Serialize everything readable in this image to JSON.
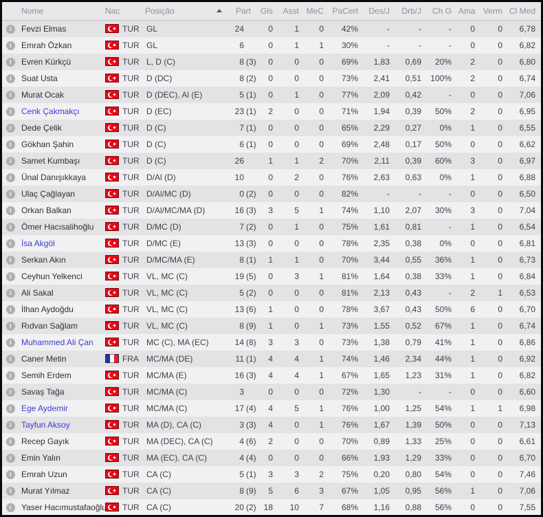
{
  "colors": {
    "window_border": "#0a0a0a",
    "header_bg": "#e8e8ea",
    "header_text": "#8f8f98",
    "row_odd": "#e3e3e5",
    "row_even": "#f1f1f3",
    "row_text": "#3f3f44",
    "link_blue": "#3b3bd1",
    "flag_tur_red": "#e30a17",
    "flag_fra_blue": "#20359c",
    "flag_fra_red": "#e32430"
  },
  "icons": {
    "info_glyph": "i",
    "sort_icon": "sort-asc-triangle"
  },
  "table": {
    "sort": {
      "column": "Posição",
      "direction": "asc"
    },
    "columns": [
      {
        "label": "",
        "align": "center"
      },
      {
        "label": "Nome",
        "align": "left"
      },
      {
        "label": "Nac",
        "align": "left"
      },
      {
        "label": "Posição",
        "align": "left"
      },
      {
        "label": "Part",
        "align": "right"
      },
      {
        "label": "Gls",
        "align": "right"
      },
      {
        "label": "Asst",
        "align": "right"
      },
      {
        "label": "MeC",
        "align": "right"
      },
      {
        "label": "PaCert",
        "align": "right"
      },
      {
        "label": "Des/J",
        "align": "right"
      },
      {
        "label": "Drb/J",
        "align": "right"
      },
      {
        "label": "Ch G",
        "align": "right"
      },
      {
        "label": "Ama",
        "align": "right"
      },
      {
        "label": "Verm",
        "align": "right"
      },
      {
        "label": "Cl Med",
        "align": "right"
      }
    ],
    "rows": [
      {
        "name": "Fevzi Elmas",
        "linked": false,
        "nat": "TUR",
        "pos": "GL",
        "part": "24",
        "gls": "0",
        "asst": "1",
        "mec": "0",
        "pacert": "42%",
        "desj": "-",
        "drbj": "-",
        "chg": "-",
        "ama": "0",
        "verm": "0",
        "clmed": "6,78"
      },
      {
        "name": "Emrah Özkan",
        "linked": false,
        "nat": "TUR",
        "pos": "GL",
        "part": "6",
        "gls": "0",
        "asst": "1",
        "mec": "1",
        "pacert": "30%",
        "desj": "-",
        "drbj": "-",
        "chg": "-",
        "ama": "0",
        "verm": "0",
        "clmed": "6,82"
      },
      {
        "name": "Evren Kürkçü",
        "linked": false,
        "nat": "TUR",
        "pos": "L, D (C)",
        "part": "8 (3)",
        "gls": "0",
        "asst": "0",
        "mec": "0",
        "pacert": "69%",
        "desj": "1,83",
        "drbj": "0,69",
        "chg": "20%",
        "ama": "2",
        "verm": "0",
        "clmed": "6,80"
      },
      {
        "name": "Suat Usta",
        "linked": false,
        "nat": "TUR",
        "pos": "D (DC)",
        "part": "8 (2)",
        "gls": "0",
        "asst": "0",
        "mec": "0",
        "pacert": "73%",
        "desj": "2,41",
        "drbj": "0,51",
        "chg": "100%",
        "ama": "2",
        "verm": "0",
        "clmed": "6,74"
      },
      {
        "name": "Murat Ocak",
        "linked": false,
        "nat": "TUR",
        "pos": "D (DEC), Al (E)",
        "part": "5 (1)",
        "gls": "0",
        "asst": "1",
        "mec": "0",
        "pacert": "77%",
        "desj": "2,09",
        "drbj": "0,42",
        "chg": "-",
        "ama": "0",
        "verm": "0",
        "clmed": "7,06"
      },
      {
        "name": "Cenk Çakmakçı",
        "linked": true,
        "nat": "TUR",
        "pos": "D (EC)",
        "part": "23 (1)",
        "gls": "2",
        "asst": "0",
        "mec": "0",
        "pacert": "71%",
        "desj": "1,94",
        "drbj": "0,39",
        "chg": "50%",
        "ama": "2",
        "verm": "0",
        "clmed": "6,95"
      },
      {
        "name": "Dede Çelik",
        "linked": false,
        "nat": "TUR",
        "pos": "D (C)",
        "part": "7 (1)",
        "gls": "0",
        "asst": "0",
        "mec": "0",
        "pacert": "65%",
        "desj": "2,29",
        "drbj": "0,27",
        "chg": "0%",
        "ama": "1",
        "verm": "0",
        "clmed": "6,55"
      },
      {
        "name": "Gökhan Şahin",
        "linked": false,
        "nat": "TUR",
        "pos": "D (C)",
        "part": "6 (1)",
        "gls": "0",
        "asst": "0",
        "mec": "0",
        "pacert": "69%",
        "desj": "2,48",
        "drbj": "0,17",
        "chg": "50%",
        "ama": "0",
        "verm": "0",
        "clmed": "6,62"
      },
      {
        "name": "Samet Kumbaşı",
        "linked": false,
        "nat": "TUR",
        "pos": "D (C)",
        "part": "26",
        "gls": "1",
        "asst": "1",
        "mec": "2",
        "pacert": "70%",
        "desj": "2,11",
        "drbj": "0,39",
        "chg": "60%",
        "ama": "3",
        "verm": "0",
        "clmed": "6,97"
      },
      {
        "name": "Ünal Danışıkkaya",
        "linked": false,
        "nat": "TUR",
        "pos": "D/Al (D)",
        "part": "10",
        "gls": "0",
        "asst": "2",
        "mec": "0",
        "pacert": "76%",
        "desj": "2,63",
        "drbj": "0,63",
        "chg": "0%",
        "ama": "1",
        "verm": "0",
        "clmed": "6,88"
      },
      {
        "name": "Ulaç Çağlayan",
        "linked": false,
        "nat": "TUR",
        "pos": "D/Al/MC (D)",
        "part": "0 (2)",
        "gls": "0",
        "asst": "0",
        "mec": "0",
        "pacert": "82%",
        "desj": "-",
        "drbj": "-",
        "chg": "-",
        "ama": "0",
        "verm": "0",
        "clmed": "6,50"
      },
      {
        "name": "Orkan Balkan",
        "linked": false,
        "nat": "TUR",
        "pos": "D/Al/MC/MA (D)",
        "part": "16 (3)",
        "gls": "3",
        "asst": "5",
        "mec": "1",
        "pacert": "74%",
        "desj": "1,10",
        "drbj": "2,07",
        "chg": "30%",
        "ama": "3",
        "verm": "0",
        "clmed": "7,04"
      },
      {
        "name": "Ömer Hacısalihoğlu",
        "linked": false,
        "nat": "TUR",
        "pos": "D/MC (D)",
        "part": "7 (2)",
        "gls": "0",
        "asst": "1",
        "mec": "0",
        "pacert": "75%",
        "desj": "1,61",
        "drbj": "0,81",
        "chg": "-",
        "ama": "1",
        "verm": "0",
        "clmed": "6,54"
      },
      {
        "name": "İsa Akgöl",
        "linked": true,
        "nat": "TUR",
        "pos": "D/MC (E)",
        "part": "13 (3)",
        "gls": "0",
        "asst": "0",
        "mec": "0",
        "pacert": "78%",
        "desj": "2,35",
        "drbj": "0,38",
        "chg": "0%",
        "ama": "0",
        "verm": "0",
        "clmed": "6,81"
      },
      {
        "name": "Serkan Akın",
        "linked": false,
        "nat": "TUR",
        "pos": "D/MC/MA (E)",
        "part": "8 (1)",
        "gls": "1",
        "asst": "1",
        "mec": "0",
        "pacert": "70%",
        "desj": "3,44",
        "drbj": "0,55",
        "chg": "36%",
        "ama": "1",
        "verm": "0",
        "clmed": "6,73"
      },
      {
        "name": "Ceyhun Yelkenci",
        "linked": false,
        "nat": "TUR",
        "pos": "VL, MC (C)",
        "part": "19 (5)",
        "gls": "0",
        "asst": "3",
        "mec": "1",
        "pacert": "81%",
        "desj": "1,64",
        "drbj": "0,38",
        "chg": "33%",
        "ama": "1",
        "verm": "0",
        "clmed": "6,84"
      },
      {
        "name": "Ali Sakal",
        "linked": false,
        "nat": "TUR",
        "pos": "VL, MC (C)",
        "part": "5 (2)",
        "gls": "0",
        "asst": "0",
        "mec": "0",
        "pacert": "81%",
        "desj": "2,13",
        "drbj": "0,43",
        "chg": "-",
        "ama": "2",
        "verm": "1",
        "clmed": "6,53"
      },
      {
        "name": "İlhan Aydoğdu",
        "linked": false,
        "nat": "TUR",
        "pos": "VL, MC (C)",
        "part": "13 (6)",
        "gls": "1",
        "asst": "0",
        "mec": "0",
        "pacert": "78%",
        "desj": "3,67",
        "drbj": "0,43",
        "chg": "50%",
        "ama": "6",
        "verm": "0",
        "clmed": "6,70"
      },
      {
        "name": "Rıdvan Sağlam",
        "linked": false,
        "nat": "TUR",
        "pos": "VL, MC (C)",
        "part": "8 (9)",
        "gls": "1",
        "asst": "0",
        "mec": "1",
        "pacert": "73%",
        "desj": "1,55",
        "drbj": "0,52",
        "chg": "67%",
        "ama": "1",
        "verm": "0",
        "clmed": "6,74"
      },
      {
        "name": "Muhammed Ali Çan",
        "linked": true,
        "nat": "TUR",
        "pos": "MC (C), MA (EC)",
        "part": "14 (8)",
        "gls": "3",
        "asst": "3",
        "mec": "0",
        "pacert": "73%",
        "desj": "1,38",
        "drbj": "0,79",
        "chg": "41%",
        "ama": "1",
        "verm": "0",
        "clmed": "6,86"
      },
      {
        "name": "Caner Metin",
        "linked": false,
        "nat": "FRA",
        "pos": "MC/MA (DE)",
        "part": "11 (1)",
        "gls": "4",
        "asst": "4",
        "mec": "1",
        "pacert": "74%",
        "desj": "1,46",
        "drbj": "2,34",
        "chg": "44%",
        "ama": "1",
        "verm": "0",
        "clmed": "6,92"
      },
      {
        "name": "Semih Erdem",
        "linked": false,
        "nat": "TUR",
        "pos": "MC/MA (E)",
        "part": "16 (3)",
        "gls": "4",
        "asst": "4",
        "mec": "1",
        "pacert": "67%",
        "desj": "1,65",
        "drbj": "1,23",
        "chg": "31%",
        "ama": "1",
        "verm": "0",
        "clmed": "6,82"
      },
      {
        "name": "Savaş Tağa",
        "linked": false,
        "nat": "TUR",
        "pos": "MC/MA (C)",
        "part": "3",
        "gls": "0",
        "asst": "0",
        "mec": "0",
        "pacert": "72%",
        "desj": "1,30",
        "drbj": "-",
        "chg": "-",
        "ama": "0",
        "verm": "0",
        "clmed": "6,60"
      },
      {
        "name": "Ege Aydemir",
        "linked": true,
        "nat": "TUR",
        "pos": "MC/MA (C)",
        "part": "17 (4)",
        "gls": "4",
        "asst": "5",
        "mec": "1",
        "pacert": "76%",
        "desj": "1,00",
        "drbj": "1,25",
        "chg": "54%",
        "ama": "1",
        "verm": "1",
        "clmed": "6,98"
      },
      {
        "name": "Tayfun Aksoy",
        "linked": true,
        "nat": "TUR",
        "pos": "MA (D), CA (C)",
        "part": "3 (3)",
        "gls": "4",
        "asst": "0",
        "mec": "1",
        "pacert": "76%",
        "desj": "1,67",
        "drbj": "1,39",
        "chg": "50%",
        "ama": "0",
        "verm": "0",
        "clmed": "7,13"
      },
      {
        "name": "Recep Gayık",
        "linked": false,
        "nat": "TUR",
        "pos": "MA (DEC), CA (C)",
        "part": "4 (6)",
        "gls": "2",
        "asst": "0",
        "mec": "0",
        "pacert": "70%",
        "desj": "0,89",
        "drbj": "1,33",
        "chg": "25%",
        "ama": "0",
        "verm": "0",
        "clmed": "6,61"
      },
      {
        "name": "Emin Yalın",
        "linked": false,
        "nat": "TUR",
        "pos": "MA (EC), CA (C)",
        "part": "4 (4)",
        "gls": "0",
        "asst": "0",
        "mec": "0",
        "pacert": "66%",
        "desj": "1,93",
        "drbj": "1,29",
        "chg": "33%",
        "ama": "0",
        "verm": "0",
        "clmed": "6,70"
      },
      {
        "name": "Emrah Uzun",
        "linked": false,
        "nat": "TUR",
        "pos": "CA (C)",
        "part": "5 (1)",
        "gls": "3",
        "asst": "3",
        "mec": "2",
        "pacert": "75%",
        "desj": "0,20",
        "drbj": "0,80",
        "chg": "54%",
        "ama": "0",
        "verm": "0",
        "clmed": "7,46"
      },
      {
        "name": "Murat Yılmaz",
        "linked": false,
        "nat": "TUR",
        "pos": "CA (C)",
        "part": "8 (9)",
        "gls": "5",
        "asst": "6",
        "mec": "3",
        "pacert": "67%",
        "desj": "1,05",
        "drbj": "0,95",
        "chg": "56%",
        "ama": "1",
        "verm": "0",
        "clmed": "7,06"
      },
      {
        "name": "Yaser Hacımustafaoğlu",
        "linked": false,
        "nat": "TUR",
        "pos": "CA (C)",
        "part": "20 (2)",
        "gls": "18",
        "asst": "10",
        "mec": "7",
        "pacert": "68%",
        "desj": "1,16",
        "drbj": "0,88",
        "chg": "56%",
        "ama": "0",
        "verm": "0",
        "clmed": "7,55"
      }
    ]
  }
}
